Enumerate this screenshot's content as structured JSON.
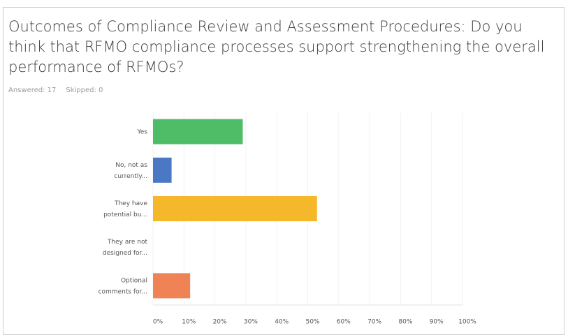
{
  "chart_data": {
    "type": "bar",
    "orientation": "horizontal",
    "title": "Outcomes of Compliance Review and Assessment Procedures: Do you think that RFMO compliance processes support strengthening the overall performance of RFMOs?",
    "answered": "Answered: 17",
    "skipped": "Skipped: 0",
    "categories": [
      [
        "Yes"
      ],
      [
        "No, not as",
        "currently..."
      ],
      [
        "They have",
        "potential bu..."
      ],
      [
        "They are not",
        "designed for..."
      ],
      [
        "Optional",
        "comments for..."
      ]
    ],
    "values": [
      29,
      6,
      53,
      0,
      12
    ],
    "colors": [
      "#4fbd68",
      "#4a78c4",
      "#f6b82b",
      "#9aa0a6",
      "#ef8356"
    ],
    "xlim": [
      0,
      100
    ],
    "xticks": [
      {
        "value": 0,
        "label": "0%"
      },
      {
        "value": 10,
        "label": "10%"
      },
      {
        "value": 20,
        "label": "20%"
      },
      {
        "value": 30,
        "label": "30%"
      },
      {
        "value": 40,
        "label": "40%"
      },
      {
        "value": 50,
        "label": "50%"
      },
      {
        "value": 60,
        "label": "60%"
      },
      {
        "value": 70,
        "label": "70%"
      },
      {
        "value": 80,
        "label": "80%"
      },
      {
        "value": 90,
        "label": "90%"
      },
      {
        "value": 100,
        "label": "100%"
      }
    ],
    "grid": true
  }
}
